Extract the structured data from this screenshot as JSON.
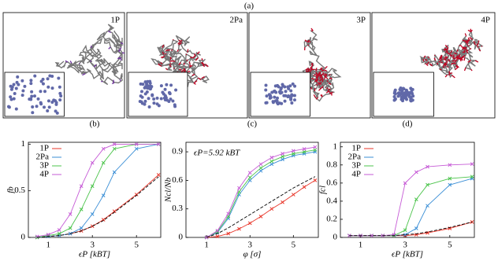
{
  "panel_a": {
    "label": "(a)",
    "images": [
      "1P",
      "2Pa",
      "3P",
      "4P"
    ]
  },
  "chart_data": [
    {
      "type": "line",
      "label": "(b)",
      "x_label": "ϵP [kBT]",
      "y_label": "fb",
      "x": [
        0.5,
        1,
        1.5,
        2,
        2.5,
        3,
        3.5,
        4,
        5,
        6
      ],
      "xlim": [
        0.1,
        6.1
      ],
      "ylim": [
        0,
        1.02
      ],
      "xticks": [
        1,
        3,
        5
      ],
      "yticks": [
        0,
        0.5,
        1
      ],
      "legend": "upper left",
      "series": [
        {
          "name": "1P",
          "color": "#e8362a",
          "values": [
            0,
            0.01,
            0.02,
            0.04,
            0.07,
            0.12,
            0.19,
            0.28,
            0.46,
            0.67
          ]
        },
        {
          "name": "2Pa",
          "color": "#3b8fd6",
          "values": [
            0,
            0.01,
            0.02,
            0.04,
            0.1,
            0.25,
            0.45,
            0.7,
            0.95,
            1
          ]
        },
        {
          "name": "3P",
          "color": "#4cc44c",
          "values": [
            0,
            0.02,
            0.04,
            0.1,
            0.3,
            0.55,
            0.8,
            0.95,
            1,
            1
          ]
        },
        {
          "name": "4P",
          "color": "#c65bd6",
          "values": [
            0.01,
            0.03,
            0.08,
            0.25,
            0.55,
            0.8,
            0.95,
            1,
            1,
            1
          ]
        },
        {
          "color": "#000000",
          "dash": true,
          "values": [
            0,
            0.01,
            0.02,
            0.04,
            0.07,
            0.12,
            0.18,
            0.27,
            0.45,
            0.65
          ]
        }
      ]
    },
    {
      "type": "line",
      "label": "(c)",
      "x_label": "φ [σ]",
      "y_label": "Ncl/Nb",
      "annotation": "ϵP=5.92 kBT",
      "x": [
        1,
        1.5,
        2,
        2.5,
        3,
        3.5,
        4,
        4.5,
        5,
        5.5,
        6
      ],
      "xlim": [
        0.05,
        6.15
      ],
      "ylim": [
        0,
        1.0
      ],
      "xticks": [
        1,
        3,
        5
      ],
      "yticks": [
        0,
        0.3,
        0.6,
        0.9
      ],
      "series": [
        {
          "color": "#e8362a",
          "values": [
            0,
            0.01,
            0.04,
            0.09,
            0.15,
            0.22,
            0.3,
            0.37,
            0.45,
            0.53,
            0.6
          ]
        },
        {
          "color": "#3b8fd6",
          "values": [
            0,
            0.05,
            0.2,
            0.45,
            0.6,
            0.7,
            0.77,
            0.82,
            0.86,
            0.88,
            0.9
          ]
        },
        {
          "color": "#4cc44c",
          "values": [
            0,
            0.06,
            0.22,
            0.48,
            0.63,
            0.73,
            0.8,
            0.85,
            0.88,
            0.9,
            0.92
          ]
        },
        {
          "color": "#c65bd6",
          "values": [
            0,
            0.07,
            0.25,
            0.52,
            0.68,
            0.77,
            0.84,
            0.88,
            0.91,
            0.93,
            0.95
          ]
        },
        {
          "color": "#000000",
          "dash": true,
          "values": [
            0,
            0.04,
            0.1,
            0.17,
            0.24,
            0.31,
            0.38,
            0.45,
            0.52,
            0.58,
            0.64
          ]
        }
      ]
    },
    {
      "type": "line",
      "label": "(d)",
      "x_label": "ϵP [kBT]",
      "y_label": "fcl",
      "x": [
        0.5,
        1,
        1.5,
        2,
        2.5,
        3,
        3.5,
        4,
        5,
        6
      ],
      "xlim": [
        0.1,
        6.1
      ],
      "ylim": [
        0,
        1.05
      ],
      "xticks": [
        1,
        3,
        5
      ],
      "yticks": [
        0,
        0.2,
        0.4,
        0.6,
        0.8,
        1
      ],
      "legend": "upper left",
      "series": [
        {
          "name": "1P",
          "color": "#e8362a",
          "values": [
            0.02,
            0.02,
            0.02,
            0.02,
            0.02,
            0.02,
            0.03,
            0.05,
            0.1,
            0.17
          ]
        },
        {
          "name": "2Pa",
          "color": "#3b8fd6",
          "values": [
            0.02,
            0.02,
            0.02,
            0.02,
            0.02,
            0.03,
            0.1,
            0.35,
            0.58,
            0.65
          ]
        },
        {
          "name": "3P",
          "color": "#4cc44c",
          "values": [
            0.02,
            0.02,
            0.02,
            0.02,
            0.02,
            0.08,
            0.42,
            0.58,
            0.65,
            0.67
          ]
        },
        {
          "name": "4P",
          "color": "#c65bd6",
          "values": [
            0.02,
            0.02,
            0.02,
            0.02,
            0.03,
            0.6,
            0.72,
            0.78,
            0.8,
            0.81
          ]
        },
        {
          "color": "#000000",
          "dash": true,
          "values": [
            0.02,
            0.02,
            0.02,
            0.02,
            0.02,
            0.03,
            0.04,
            0.06,
            0.11,
            0.17
          ]
        }
      ]
    }
  ]
}
